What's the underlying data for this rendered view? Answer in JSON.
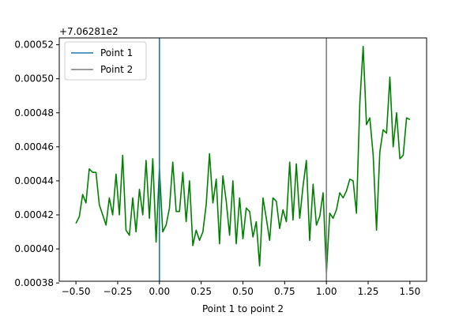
{
  "chart_data": {
    "type": "line",
    "title": "",
    "xlabel": "Point 1 to point 2",
    "ylabel": "",
    "offset_label": "+7.06281e2",
    "xlim": [
      -0.6,
      1.6
    ],
    "ylim": [
      0.000381,
      0.000524
    ],
    "xticks": [
      -0.5,
      -0.25,
      0.0,
      0.25,
      0.5,
      0.75,
      1.0,
      1.25,
      1.5
    ],
    "xtick_labels": [
      "−0.50",
      "−0.25",
      "0.00",
      "0.25",
      "0.50",
      "0.75",
      "1.00",
      "1.25",
      "1.50"
    ],
    "yticks": [
      0.00038,
      0.0004,
      0.00042,
      0.00044,
      0.00046,
      0.00048,
      0.0005,
      0.00052
    ],
    "ytick_labels": [
      "0.00038",
      "0.00040",
      "0.00042",
      "0.00044",
      "0.00046",
      "0.00048",
      "0.00050",
      "0.00052"
    ],
    "grid": false,
    "legend_position": "top-left",
    "series": [
      {
        "color": "#008000",
        "x": [
          -0.5,
          -0.48,
          -0.46,
          -0.44,
          -0.42,
          -0.4,
          -0.38,
          -0.36,
          -0.34,
          -0.32,
          -0.3,
          -0.28,
          -0.26,
          -0.24,
          -0.22,
          -0.2,
          -0.18,
          -0.16,
          -0.14,
          -0.12,
          -0.1,
          -0.08,
          -0.06,
          -0.04,
          -0.02,
          0.0,
          0.02,
          0.04,
          0.06,
          0.08,
          0.1,
          0.12,
          0.14,
          0.16,
          0.18,
          0.2,
          0.22,
          0.24,
          0.26,
          0.28,
          0.3,
          0.32,
          0.34,
          0.36,
          0.38,
          0.4,
          0.42,
          0.44,
          0.46,
          0.48,
          0.5,
          0.52,
          0.54,
          0.56,
          0.58,
          0.6,
          0.62,
          0.64,
          0.66,
          0.68,
          0.7,
          0.72,
          0.74,
          0.76,
          0.78,
          0.8,
          0.82,
          0.84,
          0.86,
          0.88,
          0.9,
          0.92,
          0.94,
          0.96,
          0.98,
          1.0,
          1.02,
          1.04,
          1.06,
          1.08,
          1.1,
          1.12,
          1.14,
          1.16,
          1.18,
          1.2,
          1.22,
          1.24,
          1.26,
          1.28,
          1.3,
          1.32,
          1.34,
          1.36,
          1.38,
          1.4,
          1.42,
          1.44,
          1.46,
          1.48,
          1.5
        ],
        "y": [
          0.000415,
          0.000419,
          0.000432,
          0.000427,
          0.000447,
          0.000445,
          0.000445,
          0.000426,
          0.00042,
          0.000414,
          0.00043,
          0.00042,
          0.000444,
          0.00042,
          0.000455,
          0.000411,
          0.000408,
          0.00043,
          0.00041,
          0.000435,
          0.00042,
          0.000452,
          0.000418,
          0.000453,
          0.000404,
          0.000447,
          0.00041,
          0.000414,
          0.000424,
          0.000451,
          0.000422,
          0.000422,
          0.000445,
          0.000416,
          0.00044,
          0.000402,
          0.000411,
          0.000405,
          0.00041,
          0.000426,
          0.000456,
          0.000427,
          0.000441,
          0.000403,
          0.000443,
          0.000428,
          0.000408,
          0.00044,
          0.000403,
          0.00043,
          0.000406,
          0.000424,
          0.000422,
          0.000407,
          0.000416,
          0.00039,
          0.00043,
          0.000418,
          0.000405,
          0.00043,
          0.000428,
          0.000412,
          0.000423,
          0.000416,
          0.000451,
          0.000417,
          0.00045,
          0.000418,
          0.000437,
          0.000452,
          0.000405,
          0.000438,
          0.000414,
          0.000419,
          0.000433,
          0.000386,
          0.000421,
          0.000418,
          0.000423,
          0.000433,
          0.00043,
          0.000434,
          0.000441,
          0.00044,
          0.000421,
          0.000486,
          0.000519,
          0.000473,
          0.000477,
          0.000455,
          0.000411,
          0.000457,
          0.00047,
          0.000468,
          0.000501,
          0.00046,
          0.00048,
          0.000453,
          0.000455,
          0.000477,
          0.000476
        ]
      }
    ],
    "vlines": [
      {
        "x": 0.0,
        "color": "#1f77b4",
        "name": "Point 1"
      },
      {
        "x": 1.0,
        "color": "#7f7f7f",
        "name": "Point 2"
      }
    ]
  }
}
